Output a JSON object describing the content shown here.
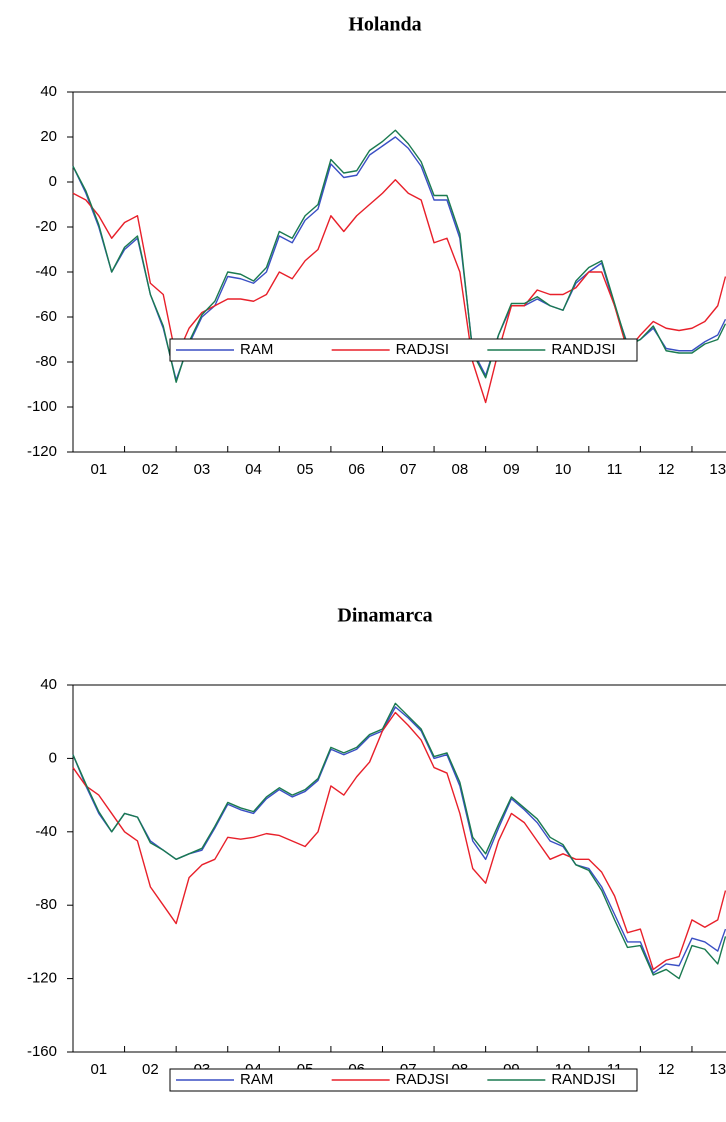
{
  "chart_data": [
    {
      "type": "line",
      "title": "Holanda",
      "x": [
        1.0,
        1.25,
        1.5,
        1.75,
        2.0,
        2.25,
        2.5,
        2.75,
        3.0,
        3.25,
        3.5,
        3.75,
        4.0,
        4.25,
        4.5,
        4.75,
        5.0,
        5.25,
        5.5,
        5.75,
        6.0,
        6.25,
        6.5,
        6.75,
        7.0,
        7.25,
        7.5,
        7.75,
        8.0,
        8.25,
        8.5,
        8.75,
        9.0,
        9.25,
        9.5,
        9.75,
        10.0,
        10.25,
        10.5,
        10.75,
        11.0,
        11.25,
        11.5,
        11.75,
        12.0,
        12.25,
        12.5,
        12.75,
        13.0,
        13.25,
        13.5,
        13.65
      ],
      "xlim": [
        1,
        13.66
      ],
      "xticks": [
        {
          "value": 1.5,
          "label": "01"
        },
        {
          "value": 2.5,
          "label": "02"
        },
        {
          "value": 3.5,
          "label": "03"
        },
        {
          "value": 4.5,
          "label": "04"
        },
        {
          "value": 5.5,
          "label": "05"
        },
        {
          "value": 6.5,
          "label": "06"
        },
        {
          "value": 7.5,
          "label": "07"
        },
        {
          "value": 8.5,
          "label": "08"
        },
        {
          "value": 9.5,
          "label": "09"
        },
        {
          "value": 10.5,
          "label": "10"
        },
        {
          "value": 11.5,
          "label": "11"
        },
        {
          "value": 12.5,
          "label": "12"
        },
        {
          "value": 13.5,
          "label": "13"
        }
      ],
      "ylim": [
        -120,
        40
      ],
      "yticks": [
        40,
        20,
        0,
        -20,
        -40,
        -60,
        -80,
        -100,
        -120
      ],
      "series": [
        {
          "name": "RAM",
          "color": "#3a4fc4",
          "values": [
            7,
            -5,
            -20,
            -40,
            -30,
            -25,
            -50,
            -65,
            -88,
            -72,
            -60,
            -55,
            -42,
            -43,
            -45,
            -40,
            -24,
            -27,
            -17,
            -12,
            8,
            2,
            3,
            12,
            16,
            20,
            15,
            7,
            -8,
            -8,
            -25,
            -75,
            -86,
            -68,
            -55,
            -55,
            -52,
            -55,
            -57,
            -45,
            -40,
            -36,
            -55,
            -72,
            -70,
            -65,
            -74,
            -75,
            -75,
            -71,
            -68,
            -61
          ]
        },
        {
          "name": "RADJSI",
          "color": "#e8202a",
          "values": [
            -5,
            -8,
            -15,
            -25,
            -18,
            -15,
            -45,
            -50,
            -78,
            -65,
            -58,
            -55,
            -52,
            -52,
            -53,
            -50,
            -40,
            -43,
            -35,
            -30,
            -15,
            -22,
            -15,
            -10,
            -5,
            1,
            -5,
            -8,
            -27,
            -25,
            -40,
            -80,
            -98,
            -75,
            -55,
            -55,
            -48,
            -50,
            -50,
            -47,
            -40,
            -40,
            -55,
            -75,
            -68,
            -62,
            -65,
            -66,
            -65,
            -62,
            -55,
            -42
          ]
        },
        {
          "name": "RANDJSI",
          "color": "#1a7a50",
          "values": [
            7,
            -4,
            -19,
            -40,
            -29,
            -24,
            -50,
            -64,
            -89,
            -71,
            -59,
            -53,
            -40,
            -41,
            -44,
            -38,
            -22,
            -25,
            -15,
            -10,
            10,
            4,
            5,
            14,
            18,
            23,
            17,
            9,
            -6,
            -6,
            -23,
            -76,
            -87,
            -68,
            -54,
            -54,
            -51,
            -55,
            -57,
            -44,
            -38,
            -35,
            -54,
            -73,
            -70,
            -64,
            -75,
            -76,
            -76,
            -72,
            -70,
            -63
          ]
        }
      ],
      "legend": "bottom"
    },
    {
      "type": "line",
      "title": "Dinamarca",
      "x": [
        1.0,
        1.25,
        1.5,
        1.75,
        2.0,
        2.25,
        2.5,
        2.75,
        3.0,
        3.25,
        3.5,
        3.75,
        4.0,
        4.25,
        4.5,
        4.75,
        5.0,
        5.25,
        5.5,
        5.75,
        6.0,
        6.25,
        6.5,
        6.75,
        7.0,
        7.25,
        7.5,
        7.75,
        8.0,
        8.25,
        8.5,
        8.75,
        9.0,
        9.25,
        9.5,
        9.75,
        10.0,
        10.25,
        10.5,
        10.75,
        11.0,
        11.25,
        11.5,
        11.75,
        12.0,
        12.25,
        12.5,
        12.75,
        13.0,
        13.25,
        13.5,
        13.65
      ],
      "xlim": [
        1,
        13.66
      ],
      "xticks": [
        {
          "value": 1.5,
          "label": "01"
        },
        {
          "value": 2.5,
          "label": "02"
        },
        {
          "value": 3.5,
          "label": "03"
        },
        {
          "value": 4.5,
          "label": "04"
        },
        {
          "value": 5.5,
          "label": "05"
        },
        {
          "value": 6.5,
          "label": "06"
        },
        {
          "value": 7.5,
          "label": "07"
        },
        {
          "value": 8.5,
          "label": "08"
        },
        {
          "value": 9.5,
          "label": "09"
        },
        {
          "value": 10.5,
          "label": "10"
        },
        {
          "value": 11.5,
          "label": "11"
        },
        {
          "value": 12.5,
          "label": "12"
        },
        {
          "value": 13.5,
          "label": "13"
        }
      ],
      "ylim": [
        -160,
        40
      ],
      "yticks": [
        40,
        0,
        -40,
        -80,
        -120,
        -160
      ],
      "series": [
        {
          "name": "RAM",
          "color": "#3a4fc4",
          "values": [
            2,
            -15,
            -30,
            -40,
            -30,
            -32,
            -45,
            -50,
            -55,
            -52,
            -50,
            -38,
            -25,
            -28,
            -30,
            -22,
            -17,
            -21,
            -18,
            -12,
            5,
            2,
            5,
            12,
            15,
            28,
            22,
            15,
            0,
            2,
            -15,
            -45,
            -55,
            -38,
            -22,
            -28,
            -35,
            -45,
            -48,
            -58,
            -60,
            -70,
            -85,
            -100,
            -100,
            -117,
            -112,
            -113,
            -98,
            -100,
            -105,
            -93
          ]
        },
        {
          "name": "RADJSI",
          "color": "#e8202a",
          "values": [
            -5,
            -15,
            -20,
            -30,
            -40,
            -45,
            -70,
            -80,
            -90,
            -65,
            -58,
            -55,
            -43,
            -44,
            -43,
            -41,
            -42,
            -45,
            -48,
            -40,
            -15,
            -20,
            -10,
            -2,
            15,
            25,
            18,
            10,
            -5,
            -8,
            -30,
            -60,
            -68,
            -45,
            -30,
            -35,
            -45,
            -55,
            -52,
            -55,
            -55,
            -62,
            -75,
            -95,
            -93,
            -115,
            -110,
            -108,
            -88,
            -92,
            -88,
            -72
          ]
        },
        {
          "name": "RANDJSI",
          "color": "#1a7a50",
          "values": [
            2,
            -14,
            -29,
            -40,
            -30,
            -32,
            -46,
            -50,
            -55,
            -52,
            -49,
            -37,
            -24,
            -27,
            -29,
            -21,
            -16,
            -20,
            -17,
            -11,
            6,
            3,
            6,
            13,
            16,
            30,
            23,
            16,
            1,
            3,
            -13,
            -43,
            -52,
            -36,
            -21,
            -27,
            -33,
            -43,
            -47,
            -58,
            -61,
            -72,
            -88,
            -103,
            -102,
            -118,
            -115,
            -120,
            -102,
            -104,
            -112,
            -97
          ]
        }
      ],
      "legend": "bottom"
    }
  ]
}
